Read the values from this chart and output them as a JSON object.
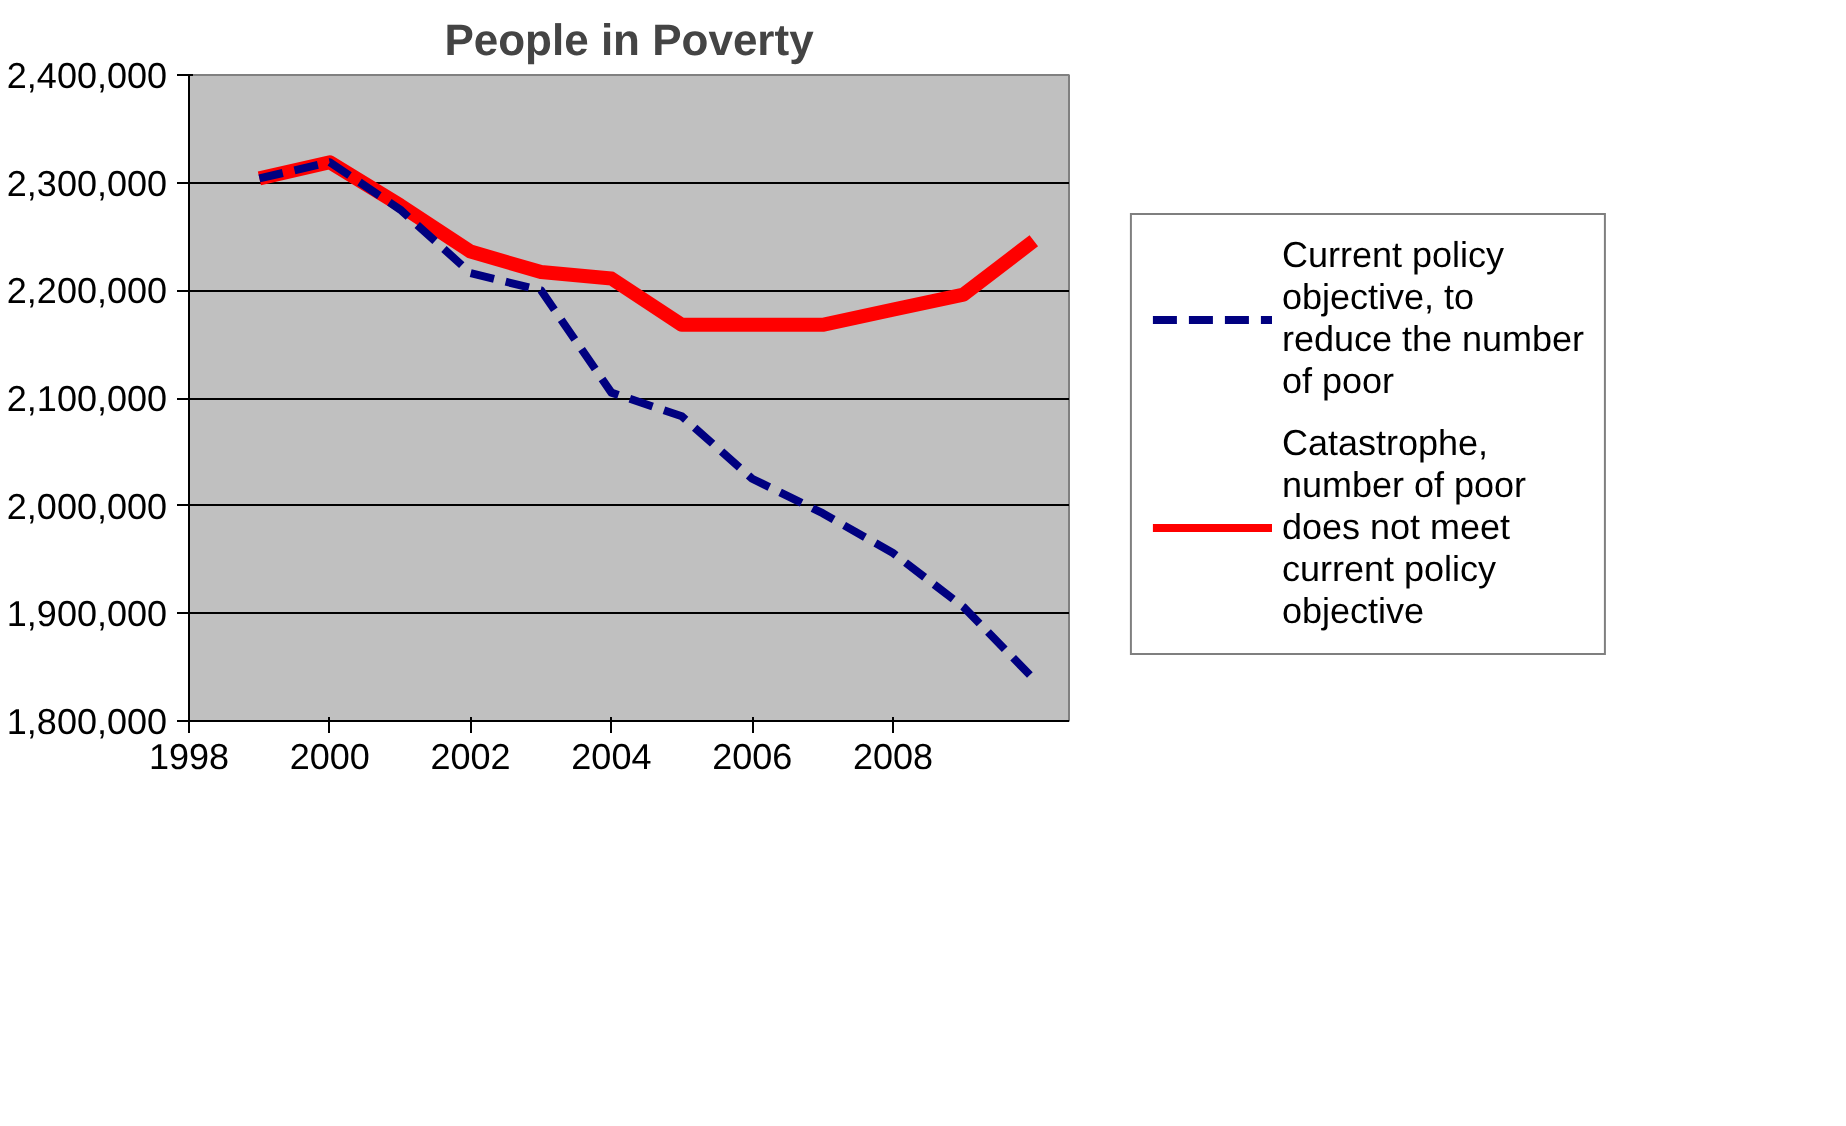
{
  "chart_data": {
    "type": "line",
    "title": "People in Poverty",
    "x": [
      1999,
      2000,
      2001,
      2002,
      2003,
      2004,
      2005,
      2006,
      2007,
      2008,
      2009,
      2010
    ],
    "series": [
      {
        "name": "Current policy objective, to reduce the number of poor",
        "color": "#000080",
        "line_style": "dashed",
        "values": [
          2304000,
          2319000,
          2275000,
          2216000,
          2200000,
          2105000,
          2083000,
          2025000,
          1993000,
          1956000,
          1906000,
          1839000
        ]
      },
      {
        "name": "Catastrophe, number of poor does not meet current policy objective",
        "color": "#ff0000",
        "line_style": "solid",
        "values": [
          2304000,
          2319000,
          2279000,
          2236000,
          2217000,
          2211000,
          2168000,
          2168000,
          2168000,
          2182000,
          2196000,
          2246000
        ]
      }
    ],
    "xlim": [
      1998,
      2010.5
    ],
    "xticks": [
      1998,
      2000,
      2002,
      2004,
      2006,
      2008
    ],
    "ylim": [
      1800000,
      2400000
    ],
    "yticks": [
      {
        "value": 1800000,
        "label": "1,800,000"
      },
      {
        "value": 1900000,
        "label": "1,900,000"
      },
      {
        "value": 2000000,
        "label": "2,000,000"
      },
      {
        "value": 2100000,
        "label": "2,100,000"
      },
      {
        "value": 2200000,
        "label": "2,200,000"
      },
      {
        "value": 2300000,
        "label": "2,300,000"
      },
      {
        "value": 2400000,
        "label": "2,400,000"
      }
    ],
    "grid": "y",
    "legend": "right",
    "marker": "none"
  }
}
